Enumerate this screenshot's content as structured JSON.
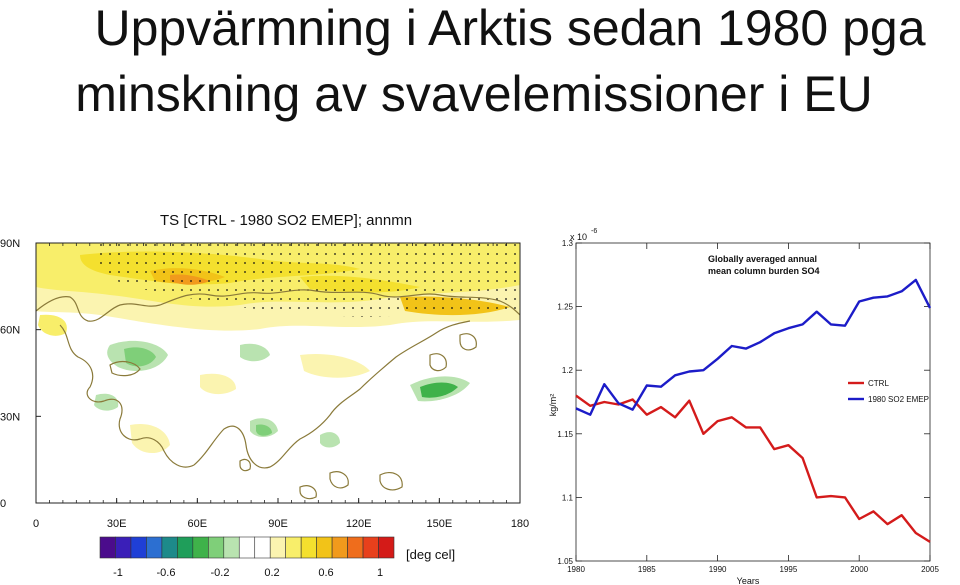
{
  "slide": {
    "title_line1": "Uppvärmning i Arktis sedan 1980 pga",
    "title_line2": "minskning av svavelemissioner i EU"
  },
  "map_panel": {
    "title": "TS [CTRL - 1980 SO2 EMEP]; annmn",
    "lat_labels": [
      "90N",
      "60N",
      "30N",
      "0"
    ],
    "lon_labels": [
      "0",
      "30E",
      "60E",
      "90E",
      "120E",
      "150E",
      "180"
    ],
    "colorbar": {
      "colors": [
        "#4b0c8c",
        "#3a1fb8",
        "#1f3fd6",
        "#2c6fd1",
        "#1d8a8a",
        "#1f9e5a",
        "#3fb24a",
        "#7fcf79",
        "#b9e3b0",
        "#ffffff",
        "#ffffff",
        "#fbf4b0",
        "#f8ee6a",
        "#f4e02e",
        "#f2c318",
        "#f19a1c",
        "#ef6d1c",
        "#e8401c",
        "#d41b18"
      ],
      "tick_labels": [
        "-1",
        "-0.6",
        "-0.2",
        "0.2",
        "0.6",
        "1"
      ],
      "unit_label": "[deg cel]"
    }
  },
  "chart_data": {
    "type": "line",
    "title": "Globally averaged annual\nmean column burden SO4",
    "xlabel": "Years",
    "ylabel": "kg/m²",
    "y_multiplier_label": "x 10",
    "y_multiplier_exp": "-6",
    "xlim": [
      1980,
      2005
    ],
    "ylim": [
      1.05,
      1.3
    ],
    "x_ticks": [
      1980,
      1985,
      1990,
      1995,
      2000,
      2005
    ],
    "y_ticks": [
      1.05,
      1.1,
      1.15,
      1.2,
      1.25,
      1.3
    ],
    "legend_position": "middle-right",
    "x": [
      1980,
      1981,
      1982,
      1983,
      1984,
      1985,
      1986,
      1987,
      1988,
      1989,
      1990,
      1991,
      1992,
      1993,
      1994,
      1995,
      1996,
      1997,
      1998,
      1999,
      2000,
      2001,
      2002,
      2003,
      2004,
      2005
    ],
    "series": [
      {
        "name": "CTRL",
        "color": "#d41b1b",
        "values": [
          1.18,
          1.172,
          1.175,
          1.173,
          1.177,
          1.165,
          1.171,
          1.163,
          1.176,
          1.15,
          1.16,
          1.163,
          1.155,
          1.155,
          1.138,
          1.141,
          1.131,
          1.1,
          1.101,
          1.1,
          1.083,
          1.089,
          1.079,
          1.086,
          1.072,
          1.065
        ]
      },
      {
        "name": "1980 SO2 EMEP",
        "color": "#1c1cc8",
        "values": [
          1.17,
          1.165,
          1.189,
          1.174,
          1.169,
          1.188,
          1.187,
          1.196,
          1.199,
          1.2,
          1.209,
          1.219,
          1.217,
          1.222,
          1.229,
          1.233,
          1.236,
          1.246,
          1.236,
          1.235,
          1.254,
          1.257,
          1.258,
          1.262,
          1.271,
          1.249
        ]
      }
    ]
  }
}
